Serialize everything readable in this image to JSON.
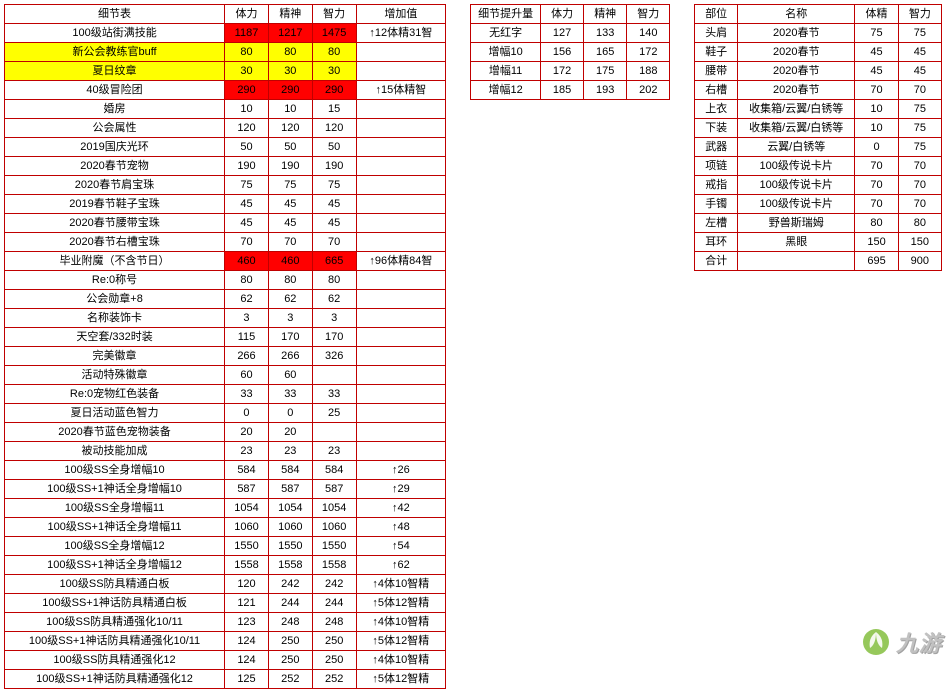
{
  "logo": {
    "text": "九游"
  },
  "t1": {
    "headers": [
      "细节表",
      "体力",
      "精神",
      "智力",
      "增加值"
    ],
    "rows": [
      {
        "n": "100级站街满技能",
        "v": [
          "1187",
          "1217",
          "1475"
        ],
        "inc": "↑12体精31智",
        "hl": "red"
      },
      {
        "n": "新公会教练官buff",
        "v": [
          "80",
          "80",
          "80"
        ],
        "inc": "",
        "hl": "yellow"
      },
      {
        "n": "夏日纹章",
        "v": [
          "30",
          "30",
          "30"
        ],
        "inc": "",
        "hl": "yellow"
      },
      {
        "n": "40级冒险团",
        "v": [
          "290",
          "290",
          "290"
        ],
        "inc": "↑15体精智",
        "hl": "red"
      },
      {
        "n": "婚房",
        "v": [
          "10",
          "10",
          "15"
        ],
        "inc": ""
      },
      {
        "n": "公会属性",
        "v": [
          "120",
          "120",
          "120"
        ],
        "inc": ""
      },
      {
        "n": "2019国庆光环",
        "v": [
          "50",
          "50",
          "50"
        ],
        "inc": ""
      },
      {
        "n": "2020春节宠物",
        "v": [
          "190",
          "190",
          "190"
        ],
        "inc": ""
      },
      {
        "n": "2020春节肩宝珠",
        "v": [
          "75",
          "75",
          "75"
        ],
        "inc": ""
      },
      {
        "n": "2019春节鞋子宝珠",
        "v": [
          "45",
          "45",
          "45"
        ],
        "inc": ""
      },
      {
        "n": "2020春节腰带宝珠",
        "v": [
          "45",
          "45",
          "45"
        ],
        "inc": ""
      },
      {
        "n": "2020春节右槽宝珠",
        "v": [
          "70",
          "70",
          "70"
        ],
        "inc": ""
      },
      {
        "n": "毕业附魔（不含节日）",
        "v": [
          "460",
          "460",
          "665"
        ],
        "inc": "↑96体精84智",
        "hl": "red"
      },
      {
        "n": "Re:0称号",
        "v": [
          "80",
          "80",
          "80"
        ],
        "inc": ""
      },
      {
        "n": "公会勋章+8",
        "v": [
          "62",
          "62",
          "62"
        ],
        "inc": ""
      },
      {
        "n": "名称装饰卡",
        "v": [
          "3",
          "3",
          "3"
        ],
        "inc": ""
      },
      {
        "n": "天空套/332时装",
        "v": [
          "115",
          "170",
          "170"
        ],
        "inc": ""
      },
      {
        "n": "完美徽章",
        "v": [
          "266",
          "266",
          "326"
        ],
        "inc": ""
      },
      {
        "n": "活动特殊徽章",
        "v": [
          "60",
          "60",
          ""
        ],
        "inc": ""
      },
      {
        "n": "Re:0宠物红色装备",
        "v": [
          "33",
          "33",
          "33"
        ],
        "inc": ""
      },
      {
        "n": "夏日活动蓝色智力",
        "v": [
          "0",
          "0",
          "25"
        ],
        "inc": ""
      },
      {
        "n": "2020春节蓝色宠物装备",
        "v": [
          "20",
          "20",
          ""
        ],
        "inc": ""
      },
      {
        "n": "被动技能加成",
        "v": [
          "23",
          "23",
          "23"
        ],
        "inc": ""
      },
      {
        "n": "100级SS全身增幅10",
        "v": [
          "584",
          "584",
          "584"
        ],
        "inc": "↑26"
      },
      {
        "n": "100级SS+1神话全身增幅10",
        "v": [
          "587",
          "587",
          "587"
        ],
        "inc": "↑29"
      },
      {
        "n": "100级SS全身增幅11",
        "v": [
          "1054",
          "1054",
          "1054"
        ],
        "inc": "↑42"
      },
      {
        "n": "100级SS+1神话全身增幅11",
        "v": [
          "1060",
          "1060",
          "1060"
        ],
        "inc": "↑48"
      },
      {
        "n": "100级SS全身增幅12",
        "v": [
          "1550",
          "1550",
          "1550"
        ],
        "inc": "↑54"
      },
      {
        "n": "100级SS+1神话全身增幅12",
        "v": [
          "1558",
          "1558",
          "1558"
        ],
        "inc": "↑62"
      },
      {
        "n": "100级SS防具精通白板",
        "v": [
          "120",
          "242",
          "242"
        ],
        "inc": "↑4体10智精"
      },
      {
        "n": "100级SS+1神话防具精通白板",
        "v": [
          "121",
          "244",
          "244"
        ],
        "inc": "↑5体12智精"
      },
      {
        "n": "100级SS防具精通强化10/11",
        "v": [
          "123",
          "248",
          "248"
        ],
        "inc": "↑4体10智精"
      },
      {
        "n": "100级SS+1神话防具精通强化10/11",
        "v": [
          "124",
          "250",
          "250"
        ],
        "inc": "↑5体12智精"
      },
      {
        "n": "100级SS防具精通强化12",
        "v": [
          "124",
          "250",
          "250"
        ],
        "inc": "↑4体10智精"
      },
      {
        "n": "100级SS+1神话防具精通强化12",
        "v": [
          "125",
          "252",
          "252"
        ],
        "inc": "↑5体12智精"
      }
    ]
  },
  "t2": {
    "headers": [
      "细节提升量",
      "体力",
      "精神",
      "智力"
    ],
    "rows": [
      {
        "n": "无红字",
        "v": [
          "127",
          "133",
          "140"
        ]
      },
      {
        "n": "增幅10",
        "v": [
          "156",
          "165",
          "172"
        ]
      },
      {
        "n": "增幅11",
        "v": [
          "172",
          "175",
          "188"
        ]
      },
      {
        "n": "增幅12",
        "v": [
          "185",
          "193",
          "202"
        ]
      }
    ]
  },
  "t3": {
    "headers": [
      "部位",
      "名称",
      "体精",
      "智力"
    ],
    "rows": [
      {
        "s": "头肩",
        "n": "2020春节",
        "v": [
          "75",
          "75"
        ]
      },
      {
        "s": "鞋子",
        "n": "2020春节",
        "v": [
          "45",
          "45"
        ]
      },
      {
        "s": "腰带",
        "n": "2020春节",
        "v": [
          "45",
          "45"
        ]
      },
      {
        "s": "右槽",
        "n": "2020春节",
        "v": [
          "70",
          "70"
        ]
      },
      {
        "s": "上衣",
        "n": "收集箱/云翼/白锈等",
        "v": [
          "10",
          "75"
        ]
      },
      {
        "s": "下装",
        "n": "收集箱/云翼/白锈等",
        "v": [
          "10",
          "75"
        ]
      },
      {
        "s": "武器",
        "n": "云翼/白锈等",
        "v": [
          "0",
          "75"
        ]
      },
      {
        "s": "项链",
        "n": "100级传说卡片",
        "v": [
          "70",
          "70"
        ]
      },
      {
        "s": "戒指",
        "n": "100级传说卡片",
        "v": [
          "70",
          "70"
        ]
      },
      {
        "s": "手镯",
        "n": "100级传说卡片",
        "v": [
          "70",
          "70"
        ]
      },
      {
        "s": "左槽",
        "n": "野兽斯瑞姆",
        "v": [
          "80",
          "80"
        ]
      },
      {
        "s": "耳环",
        "n": "黑眼",
        "v": [
          "150",
          "150"
        ]
      },
      {
        "s": "合计",
        "n": "",
        "v": [
          "695",
          "900"
        ]
      }
    ]
  }
}
